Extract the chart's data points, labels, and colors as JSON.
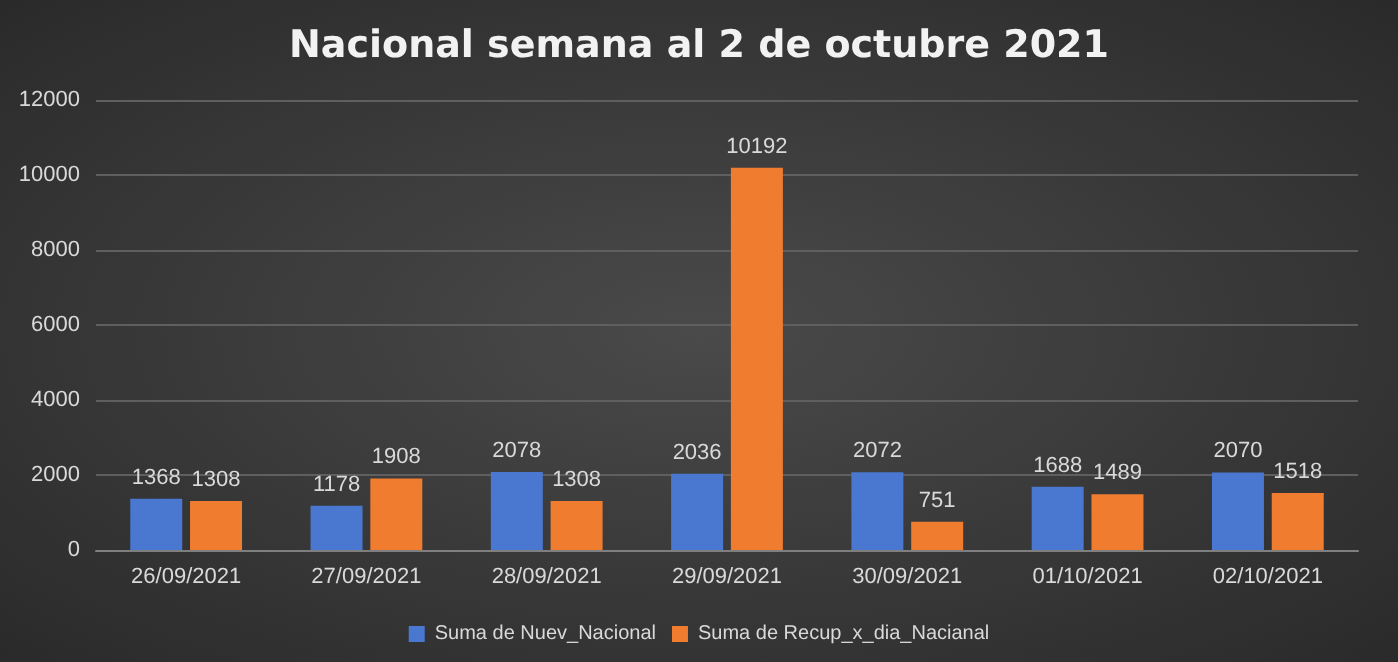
{
  "chart_data": {
    "type": "bar",
    "title": "Nacional semana al 2 de octubre 2021",
    "categories": [
      "26/09/2021",
      "27/09/2021",
      "28/09/2021",
      "29/09/2021",
      "30/09/2021",
      "01/10/2021",
      "02/10/2021"
    ],
    "series": [
      {
        "name": "Suma de Nuev_Nacional",
        "color": "#4a78d0",
        "values": [
          1368,
          1178,
          2078,
          2036,
          2072,
          1688,
          2070
        ]
      },
      {
        "name": "Suma de Recup_x_dia_Nacianal",
        "color": "#f07c30",
        "values": [
          1308,
          1908,
          1308,
          10192,
          751,
          1489,
          1518
        ]
      }
    ],
    "ylim": [
      0,
      12000
    ],
    "yticks": [
      0,
      2000,
      4000,
      6000,
      8000,
      10000,
      12000
    ],
    "grid": "y",
    "legend": "bottom",
    "data_labels": true
  }
}
